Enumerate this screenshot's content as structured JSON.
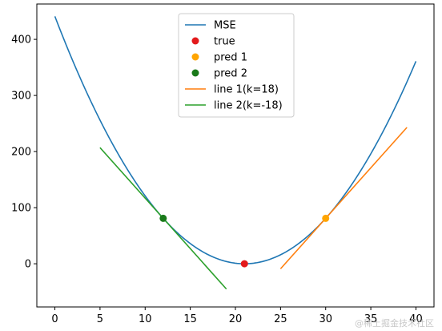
{
  "chart_data": {
    "type": "line",
    "xlim": [
      -2.0,
      42.0
    ],
    "ylim": [
      -77,
      463
    ],
    "xticks": [
      0,
      5,
      10,
      15,
      20,
      25,
      30,
      35,
      40
    ],
    "yticks": [
      0,
      100,
      200,
      300,
      400
    ],
    "grid": false,
    "legend_position": "top-center",
    "mse_curve": {
      "name": "MSE",
      "color": "#1f77b4",
      "formula": "(x-21)^2",
      "x_range": [
        0,
        40
      ]
    },
    "points": [
      {
        "name": "true",
        "x": 21,
        "y": 0,
        "color": "#e31a1c"
      },
      {
        "name": "pred 1",
        "x": 30,
        "y": 81,
        "color": "#ffa500"
      },
      {
        "name": "pred 2",
        "x": 12,
        "y": 81,
        "color": "#1a7a1a"
      }
    ],
    "lines": [
      {
        "name": "line 1(k=18)",
        "color": "#ff7f0e",
        "x": [
          25,
          39
        ],
        "y": [
          -9,
          243
        ]
      },
      {
        "name": "line 2(k=-18)",
        "color": "#2ca02c",
        "x": [
          5,
          19
        ],
        "y": [
          207,
          -45
        ]
      }
    ],
    "legend": [
      "MSE",
      "true",
      "pred 1",
      "pred 2",
      "line 1(k=18)",
      "line 2(k=-18)"
    ]
  },
  "watermark": "@稀土掘金技术社区"
}
